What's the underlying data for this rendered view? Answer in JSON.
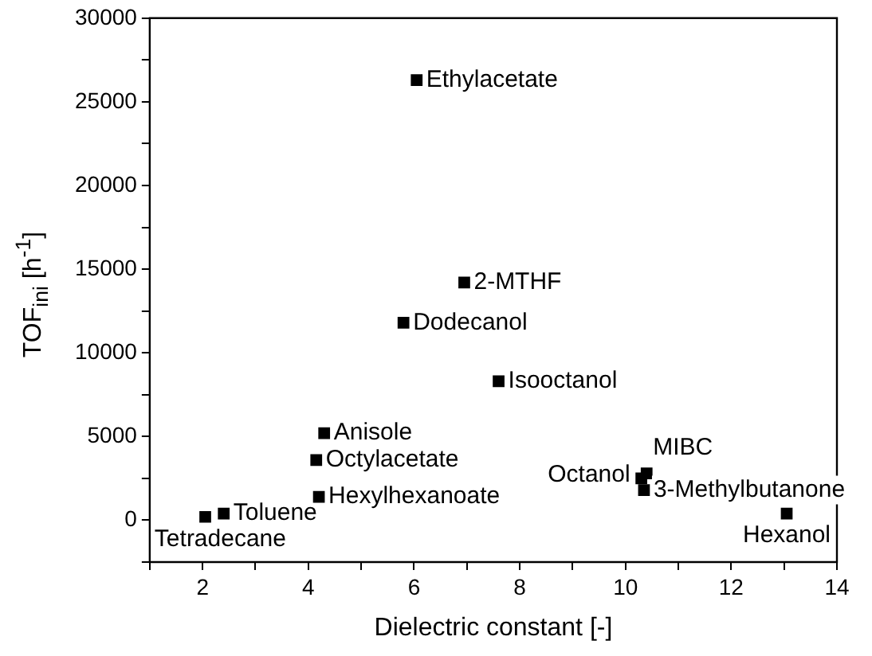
{
  "chart_data": {
    "type": "scatter",
    "xlabel": "Dielectric constant [-]",
    "ylabel": "TOF$_{ini}$ [h$^{-1}$]",
    "x": [
      6.05,
      6.95,
      5.8,
      7.6,
      4.3,
      4.15,
      4.2,
      2.4,
      2.05,
      10.3,
      10.4,
      10.35,
      13.05
    ],
    "values": [
      26300,
      14200,
      11800,
      8300,
      5200,
      3600,
      1400,
      400,
      200,
      2500,
      2800,
      1800,
      400
    ],
    "color": "#000000",
    "marker": "square",
    "annotations": [
      {
        "text": "Ethylacetate",
        "x": 6.05,
        "y": 26300
      },
      {
        "text": "2-MTHF",
        "x": 6.95,
        "y": 14200
      },
      {
        "text": "Dodecanol",
        "x": 5.8,
        "y": 11800
      },
      {
        "text": "Isooctanol",
        "x": 7.6,
        "y": 8300
      },
      {
        "text": "Anisole",
        "x": 4.3,
        "y": 5200
      },
      {
        "text": "Octylacetate",
        "x": 4.15,
        "y": 3600
      },
      {
        "text": "Hexylhexanoate",
        "x": 4.2,
        "y": 1400
      },
      {
        "text": "Toluene",
        "x": 2.4,
        "y": 400
      },
      {
        "text": "Tetradecane",
        "x": 2.05,
        "y": 200
      },
      {
        "text": "Octanol",
        "x": 10.3,
        "y": 2500
      },
      {
        "text": "MIBC",
        "x": 10.4,
        "y": 2800
      },
      {
        "text": "3-Methylbutanone",
        "x": 10.35,
        "y": 1800
      },
      {
        "text": "Hexanol",
        "x": 13.05,
        "y": 400
      }
    ],
    "xlim": [
      1,
      14
    ],
    "xticks": [
      {
        "value": 1,
        "label": null
      },
      2,
      {
        "value": 3,
        "label": null
      },
      4,
      {
        "value": 5,
        "label": null
      },
      6,
      {
        "value": 7,
        "label": null
      },
      8,
      {
        "value": 9,
        "label": null
      },
      10,
      {
        "value": 11,
        "label": null
      },
      12,
      {
        "value": 13,
        "label": null
      },
      14
    ],
    "ylim": [
      -2500,
      30000
    ],
    "yticks": [
      {
        "value": -2500,
        "label": null
      },
      0,
      {
        "value": 2500,
        "label": null
      },
      5000,
      {
        "value": 7500,
        "label": null
      },
      10000,
      {
        "value": 12500,
        "label": null
      },
      15000,
      {
        "value": 17500,
        "label": null
      },
      20000,
      {
        "value": 22500,
        "label": null
      },
      25000,
      {
        "value": 27500,
        "label": null
      },
      30000
    ],
    "grid": false,
    "legend": false
  }
}
